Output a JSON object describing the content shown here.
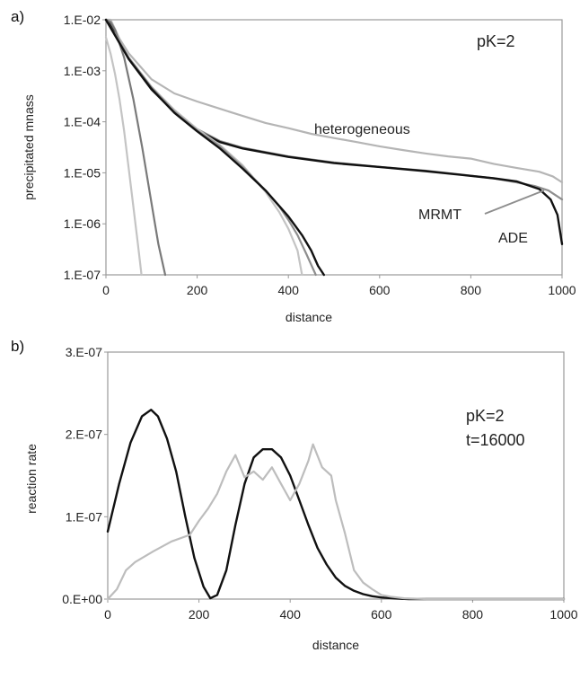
{
  "chart_data": [
    {
      "panel_label": "a)",
      "type": "line",
      "xlabel": "distance",
      "ylabel": "precipitated mnass",
      "xlim": [
        0,
        1000
      ],
      "ylim": [
        1e-07,
        0.01
      ],
      "log_y": true,
      "x_ticks": [
        0,
        200,
        400,
        600,
        800,
        1000
      ],
      "x_tick_labels": [
        "0",
        "200",
        "400",
        "600",
        "800",
        "1000"
      ],
      "y_ticks": [
        0.01,
        0.001,
        0.0001,
        1e-05,
        1e-06,
        1e-07
      ],
      "y_tick_labels": [
        "1.E-02",
        "1.E-03",
        "1.E-04",
        "1.E-05",
        "1.E-06",
        "1.E-07"
      ],
      "annotations": [
        "pK=2",
        "heterogeneous",
        "MRMT",
        "ADE"
      ],
      "series": [
        {
          "color": "#b5b5b5",
          "x": [
            0,
            10,
            20,
            30,
            50,
            100,
            150,
            200,
            250,
            300,
            350,
            400,
            450,
            500,
            550,
            600,
            650,
            700,
            750,
            800,
            850,
            900,
            950,
            980,
            1000
          ],
          "y": [
            0.011,
            0.01,
            0.0065,
            0.0042,
            0.0022,
            0.00068,
            0.00036,
            0.00025,
            0.00018,
            0.00013,
            9.5e-05,
            7.5e-05,
            5.8e-05,
            4.8e-05,
            4e-05,
            3.3e-05,
            2.8e-05,
            2.4e-05,
            2.1e-05,
            1.9e-05,
            1.5e-05,
            1.25e-05,
            1.05e-05,
            8.5e-06,
            6.5e-06
          ]
        },
        {
          "color": "#8e8e8e",
          "x": [
            0,
            10,
            30,
            50,
            100,
            150,
            200,
            250,
            300,
            400,
            500,
            600,
            700,
            800,
            850,
            900,
            940,
            970,
            1000
          ],
          "y": [
            0.011,
            0.0085,
            0.0037,
            0.0018,
            0.00048,
            0.00017,
            7.2e-05,
            4.2e-05,
            3.1e-05,
            2.1e-05,
            1.6e-05,
            1.3e-05,
            1.1e-05,
            8.8e-06,
            7.8e-06,
            6.5e-06,
            5.5e-06,
            4.5e-06,
            3e-06
          ]
        },
        {
          "color": "#111111",
          "x": [
            0,
            10,
            30,
            50,
            100,
            150,
            200,
            250,
            300,
            400,
            500,
            600,
            700,
            800,
            850,
            900,
            950,
            975,
            990,
            1000
          ],
          "y": [
            0.011,
            0.008,
            0.0035,
            0.0017,
            0.00043,
            0.000155,
            6.8e-05,
            4e-05,
            3e-05,
            2.05e-05,
            1.55e-05,
            1.3e-05,
            1.08e-05,
            8.7e-06,
            7.8e-06,
            6.8e-06,
            4.8e-06,
            3e-06,
            1.5e-06,
            4e-07
          ]
        },
        {
          "color": "#c4c4c4",
          "x": [
            0,
            10,
            20,
            30,
            40,
            50,
            60,
            70,
            78
          ],
          "y": [
            0.0045,
            0.0022,
            0.00085,
            0.00027,
            6.5e-05,
            1.2e-05,
            2.2e-06,
            4e-07,
            1e-07
          ]
        },
        {
          "color": "#7a7a7a",
          "x": [
            0,
            10,
            20,
            40,
            60,
            80,
            100,
            115,
            130
          ],
          "y": [
            0.011,
            0.009,
            0.0063,
            0.0018,
            0.00028,
            3e-05,
            2.5e-06,
            4e-07,
            1e-07
          ]
        },
        {
          "color": "#c4c4c4",
          "x": [
            0,
            50,
            100,
            150,
            200,
            250,
            300,
            350,
            380,
            400,
            420,
            430
          ],
          "y": [
            0.011,
            0.0018,
            0.00048,
            0.00017,
            7.2e-05,
            3.5e-05,
            1.4e-05,
            4.2e-06,
            1.7e-06,
            8e-07,
            3e-07,
            1e-07
          ]
        },
        {
          "color": "#8e8e8e",
          "x": [
            0,
            50,
            100,
            150,
            200,
            250,
            300,
            350,
            380,
            400,
            420,
            440,
            460
          ],
          "y": [
            0.011,
            0.0018,
            0.00047,
            0.00016,
            6.8e-05,
            3.3e-05,
            1.3e-05,
            4.5e-06,
            2.2e-06,
            1.2e-06,
            6e-07,
            2.5e-07,
            1e-07
          ]
        },
        {
          "color": "#111111",
          "x": [
            0,
            50,
            100,
            150,
            200,
            250,
            300,
            350,
            400,
            430,
            450,
            465,
            478
          ],
          "y": [
            0.011,
            0.0017,
            0.00044,
            0.00015,
            6.5e-05,
            3e-05,
            1.2e-05,
            4.5e-06,
            1.4e-06,
            6e-07,
            3e-07,
            1.5e-07,
            1e-07
          ]
        }
      ]
    },
    {
      "panel_label": "b)",
      "type": "line",
      "xlabel": "distance",
      "ylabel": "reaction rate",
      "xlim": [
        0,
        1000
      ],
      "ylim": [
        0,
        3e-07
      ],
      "x_ticks": [
        0,
        200,
        400,
        600,
        800,
        1000
      ],
      "x_tick_labels": [
        "0",
        "200",
        "400",
        "600",
        "800",
        "1000"
      ],
      "y_ticks": [
        0,
        1e-07,
        2e-07,
        3e-07
      ],
      "y_tick_labels": [
        "0.E+00",
        "1.E-07",
        "2.E-07",
        "3.E-07"
      ],
      "annotations": [
        "pK=2",
        "t=16000"
      ],
      "series": [
        {
          "color": "#111111",
          "x": [
            0,
            25,
            50,
            75,
            95,
            110,
            130,
            150,
            170,
            190,
            210,
            225,
            240,
            260,
            280,
            300,
            320,
            340,
            360,
            380,
            400,
            420,
            440,
            460,
            480,
            500,
            520,
            540,
            560,
            580,
            600,
            630,
            660,
            700,
            1000
          ],
          "y": [
            8.2e-08,
            1.4e-07,
            1.9e-07,
            2.22e-07,
            2.3e-07,
            2.22e-07,
            1.95e-07,
            1.55e-07,
            1e-07,
            5e-08,
            1.5e-08,
            1e-09,
            5e-09,
            3.5e-08,
            9e-08,
            1.4e-07,
            1.72e-07,
            1.82e-07,
            1.82e-07,
            1.72e-07,
            1.5e-07,
            1.2e-07,
            9e-08,
            6.2e-08,
            4.2e-08,
            2.6e-08,
            1.6e-08,
            1e-08,
            6e-09,
            3.5e-09,
            2e-09,
            8e-10,
            0,
            0,
            0
          ]
        },
        {
          "color": "#bdbdbd",
          "x": [
            0,
            20,
            40,
            60,
            100,
            140,
            180,
            200,
            220,
            240,
            260,
            280,
            300,
            320,
            340,
            360,
            380,
            400,
            420,
            440,
            450,
            470,
            490,
            500,
            520,
            540,
            560,
            580,
            600,
            620,
            650,
            700,
            1000
          ],
          "y": [
            0,
            1.2e-08,
            3.5e-08,
            4.5e-08,
            5.8e-08,
            7e-08,
            7.8e-08,
            9.5e-08,
            1.1e-07,
            1.28e-07,
            1.55e-07,
            1.75e-07,
            1.48e-07,
            1.55e-07,
            1.45e-07,
            1.6e-07,
            1.4e-07,
            1.2e-07,
            1.4e-07,
            1.68e-07,
            1.88e-07,
            1.6e-07,
            1.5e-07,
            1.2e-07,
            8e-08,
            3.5e-08,
            2e-08,
            1.2e-08,
            5e-09,
            3e-09,
            1e-09,
            0,
            0
          ]
        }
      ]
    }
  ]
}
